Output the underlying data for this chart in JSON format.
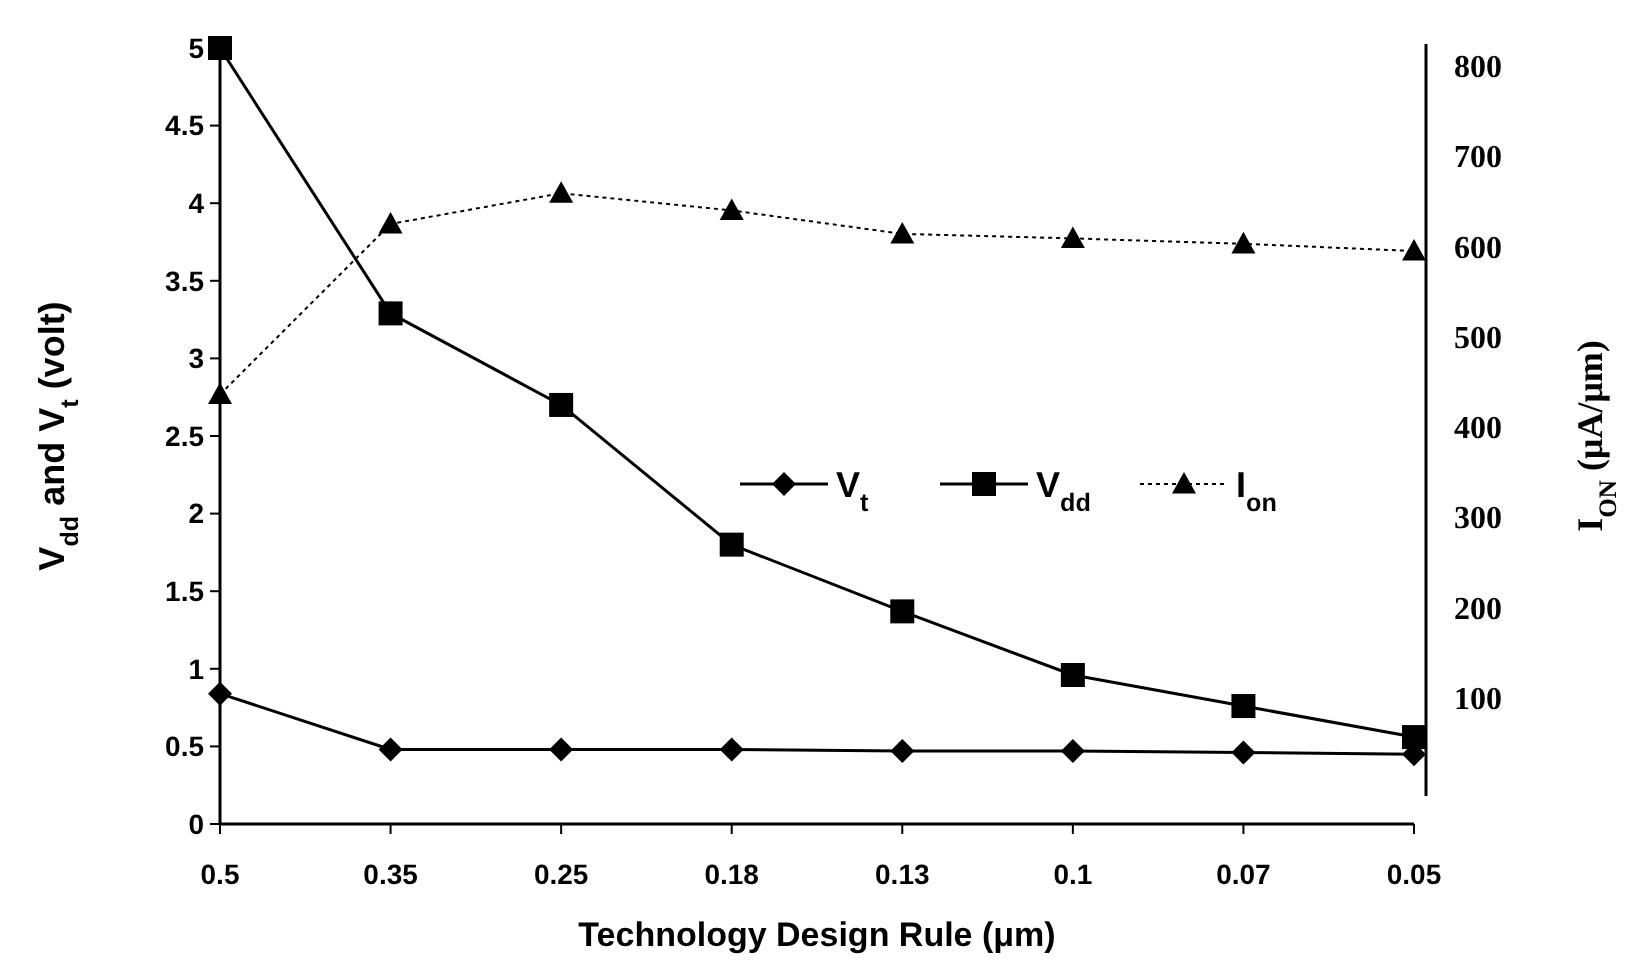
{
  "chart_data": {
    "type": "line",
    "xlabel": "Technology Design Rule (μm)",
    "ylabel": "V$_{dd}$ and V$_{t}$ (volt)",
    "y2label": "I$_{ON}$ (μA/μm)",
    "categories": [
      "0.5",
      "0.35",
      "0.25",
      "0.18",
      "0.13",
      "0.1",
      "0.07",
      "0.05"
    ],
    "ylim": [
      0,
      5
    ],
    "yticks": [
      0,
      0.5,
      1,
      1.5,
      2,
      2.5,
      3,
      3.5,
      4,
      4.5,
      5
    ],
    "y2lim": [
      -40,
      820
    ],
    "y2ticks": [
      100,
      200,
      300,
      400,
      500,
      600,
      700,
      800
    ],
    "legend": "right",
    "grid": false,
    "series": [
      {
        "name": "V$_{t}$",
        "color": "#000000",
        "marker": "diamond",
        "line_style": "solid",
        "values": [
          0.84,
          0.48,
          0.48,
          0.48,
          0.47,
          0.47,
          0.46,
          0.45
        ]
      },
      {
        "name": "V$_{dd}$",
        "color": "#000000",
        "marker": "square",
        "line_style": "solid",
        "values": [
          5.0,
          3.29,
          2.7,
          1.8,
          1.37,
          0.96,
          0.76,
          0.56
        ]
      },
      {
        "name": "I$_{on}$",
        "color": "#000000",
        "marker": "triangle",
        "line_style": "dotted",
        "axis": "y2",
        "values": [
          436,
          625,
          659,
          640,
          614,
          609,
          603,
          595
        ]
      }
    ]
  }
}
